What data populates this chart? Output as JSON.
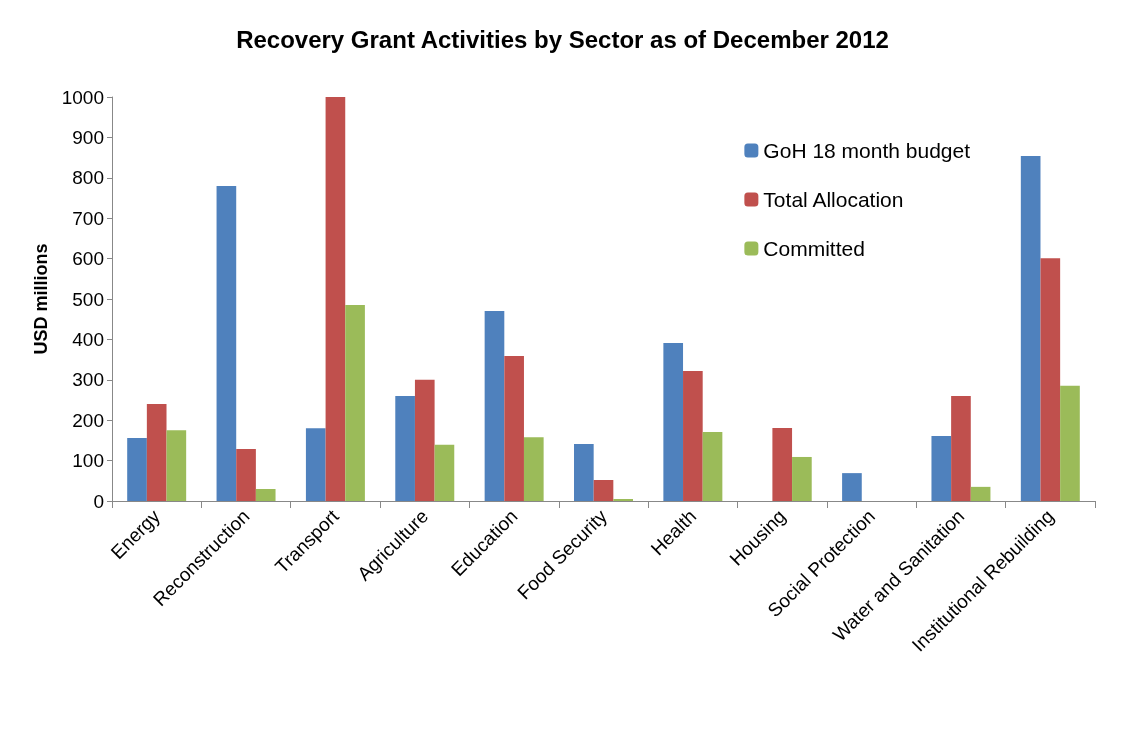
{
  "chart_data": {
    "type": "bar",
    "title": "Recovery Grant Activities by Sector as of December 2012",
    "ylabel": "USD millions",
    "categories": [
      "Energy",
      "Reconstruction",
      "Transport",
      "Agriculture",
      "Education",
      "Food Security",
      "Health",
      "Housing",
      "Social Protection",
      "Water and Sanitation",
      "Institutional Rebuilding"
    ],
    "series": [
      {
        "name": "GoH 18 month budget",
        "color": "#4f81bd",
        "values": [
          156,
          780,
          180,
          260,
          470,
          141,
          391,
          0,
          69,
          161,
          854
        ]
      },
      {
        "name": "Total Allocation",
        "color": "#c0504d",
        "values": [
          240,
          129,
          1000,
          300,
          359,
          52,
          322,
          181,
          0,
          260,
          601
        ]
      },
      {
        "name": "Committed",
        "color": "#9bbb59",
        "values": [
          175,
          30,
          485,
          139,
          158,
          5,
          171,
          109,
          0,
          35,
          285
        ]
      }
    ],
    "ylim": [
      0,
      1000
    ],
    "yticks": [
      0,
      100,
      200,
      300,
      400,
      500,
      600,
      700,
      800,
      900,
      1000
    ],
    "grid": false,
    "legend": "top right"
  }
}
